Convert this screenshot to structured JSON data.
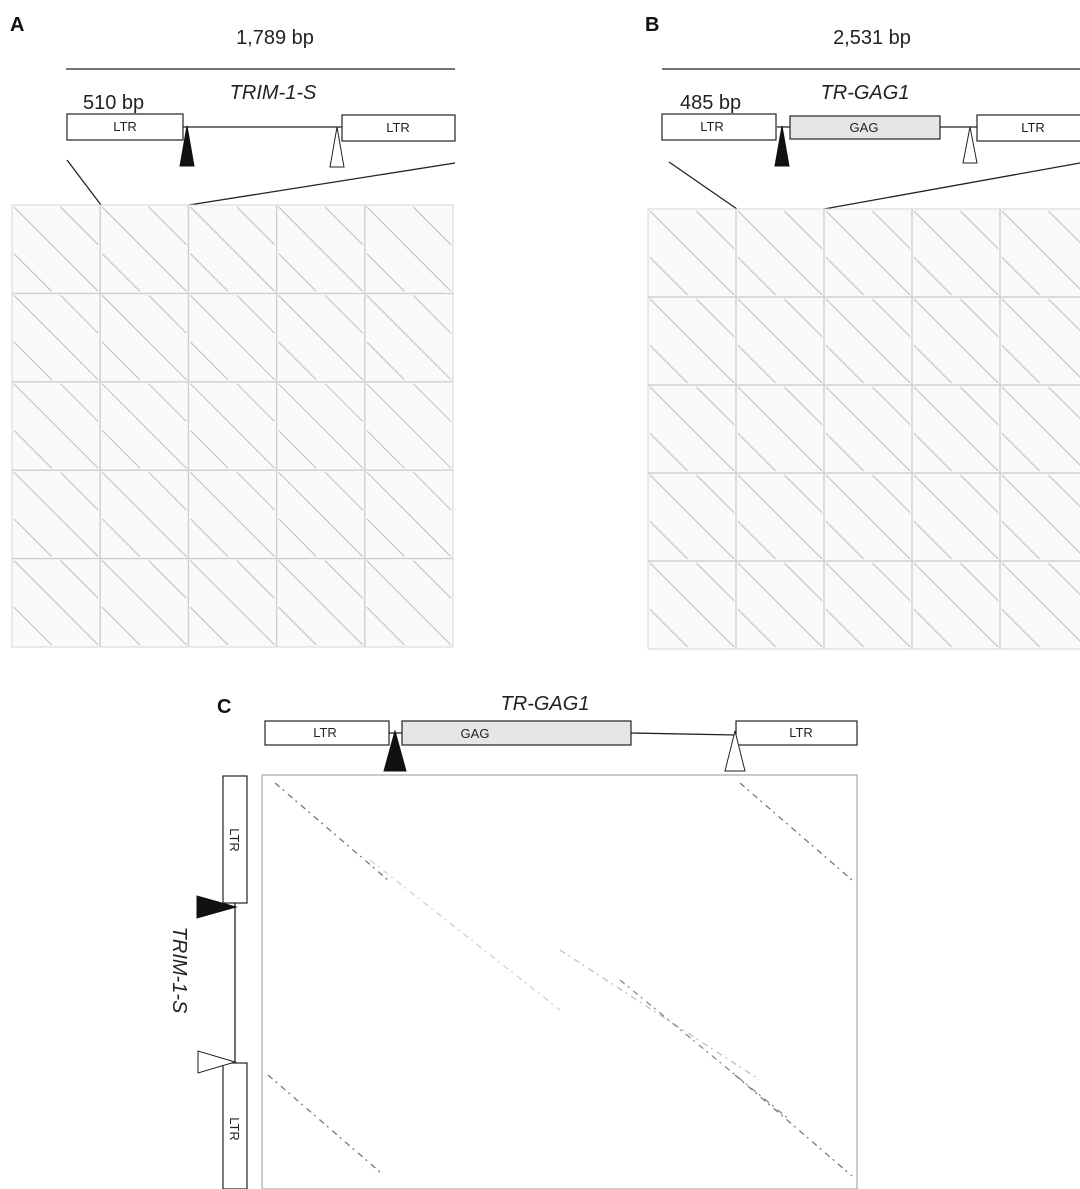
{
  "panels": {
    "A": {
      "label": "A",
      "total_length": "1,789 bp",
      "element_name": "TRIM-1-S",
      "ltr_length": "510 bp",
      "boxes": {
        "ltr_left": "LTR",
        "ltr_right": "LTR"
      }
    },
    "B": {
      "label": "B",
      "total_length": "2,531 bp",
      "element_name": "TR-GAG1",
      "ltr_length": "485 bp",
      "boxes": {
        "ltr_left": "LTR",
        "gag": "GAG",
        "ltr_right": "LTR"
      }
    },
    "C": {
      "label": "C",
      "x_element_name": "TR-GAG1",
      "y_element_name": "TRIM-1-S",
      "x_boxes": {
        "ltr_left": "LTR",
        "gag": "GAG",
        "ltr_right": "LTR"
      },
      "y_boxes": {
        "ltr_top": "LTR",
        "ltr_bottom": "LTR"
      }
    }
  },
  "colors": {
    "background": "#ffffff",
    "gag_fill": "#e6e6e6",
    "grid": "#cfcfcf"
  }
}
